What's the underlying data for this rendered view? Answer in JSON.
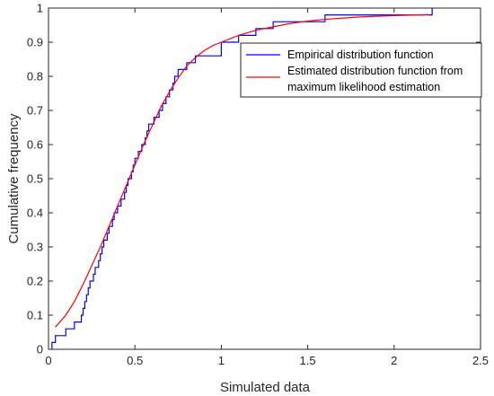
{
  "chart_data": {
    "type": "line",
    "xlabel": "Simulated data",
    "ylabel": "Cumulative frequency",
    "xlim": [
      0,
      2.5
    ],
    "ylim": [
      0,
      1
    ],
    "xticks": [
      0,
      0.5,
      1,
      1.5,
      2,
      2.5
    ],
    "xtick_labels": [
      "0",
      "0.5",
      "1",
      "1.5",
      "2",
      "2.5"
    ],
    "yticks": [
      0,
      0.1,
      0.2,
      0.3,
      0.4,
      0.5,
      0.6,
      0.7,
      0.8,
      0.9,
      1
    ],
    "ytick_labels": [
      "0",
      "0.1",
      "0.2",
      "0.3",
      "0.4",
      "0.5",
      "0.6",
      "0.7",
      "0.8",
      "0.9",
      "1"
    ],
    "grid": false,
    "legend_position": "top-right",
    "legend": [
      "Empirical distribution function",
      "Estimated distribution function from",
      "maximum likelihood estimation"
    ],
    "series": [
      {
        "name": "Empirical distribution function",
        "style": "step",
        "color": "#0000ff",
        "x": [
          0.02,
          0.04,
          0.06,
          0.1,
          0.15,
          0.19,
          0.2,
          0.21,
          0.22,
          0.23,
          0.24,
          0.26,
          0.27,
          0.29,
          0.3,
          0.31,
          0.32,
          0.33,
          0.34,
          0.35,
          0.36,
          0.37,
          0.38,
          0.4,
          0.42,
          0.44,
          0.45,
          0.46,
          0.48,
          0.49,
          0.5,
          0.51,
          0.52,
          0.54,
          0.56,
          0.57,
          0.58,
          0.59,
          0.61,
          0.62,
          0.64,
          0.66,
          0.68,
          0.7,
          0.72,
          0.73,
          0.75,
          0.77,
          0.8,
          0.85,
          0.9,
          1.0,
          1.1,
          1.2,
          1.3,
          1.6,
          2.2,
          2.22
        ],
        "y": [
          0.02,
          0.04,
          0.04,
          0.06,
          0.08,
          0.1,
          0.12,
          0.14,
          0.16,
          0.18,
          0.2,
          0.22,
          0.24,
          0.26,
          0.28,
          0.3,
          0.32,
          0.32,
          0.34,
          0.36,
          0.36,
          0.38,
          0.4,
          0.42,
          0.44,
          0.46,
          0.48,
          0.5,
          0.52,
          0.54,
          0.56,
          0.56,
          0.58,
          0.6,
          0.62,
          0.64,
          0.66,
          0.66,
          0.68,
          0.68,
          0.7,
          0.72,
          0.74,
          0.76,
          0.78,
          0.8,
          0.82,
          0.82,
          0.84,
          0.86,
          0.86,
          0.9,
          0.92,
          0.94,
          0.96,
          0.98,
          0.98,
          1.0
        ]
      },
      {
        "name": "Estimated distribution function from maximum likelihood estimation",
        "style": "line",
        "color": "#ff0000",
        "x": [
          0.04,
          0.1,
          0.15,
          0.2,
          0.25,
          0.3,
          0.35,
          0.4,
          0.45,
          0.5,
          0.55,
          0.6,
          0.65,
          0.7,
          0.75,
          0.8,
          0.85,
          0.9,
          0.95,
          1.0,
          1.1,
          1.2,
          1.3,
          1.4,
          1.5,
          1.6,
          1.8,
          2.0,
          2.2
        ],
        "y": [
          0.065,
          0.1,
          0.14,
          0.19,
          0.245,
          0.3,
          0.36,
          0.42,
          0.48,
          0.54,
          0.6,
          0.655,
          0.71,
          0.755,
          0.795,
          0.83,
          0.855,
          0.875,
          0.89,
          0.9,
          0.92,
          0.935,
          0.945,
          0.955,
          0.962,
          0.967,
          0.974,
          0.978,
          0.981
        ]
      }
    ]
  }
}
